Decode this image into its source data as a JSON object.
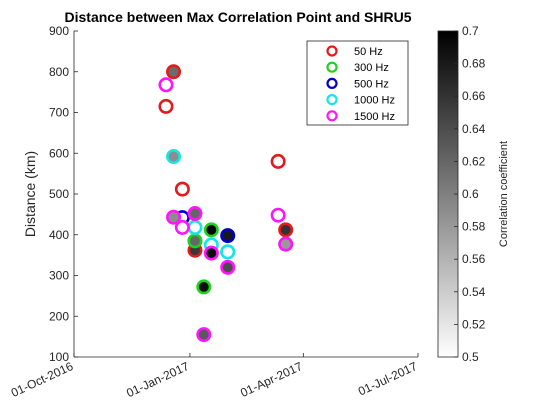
{
  "chart_data": {
    "type": "scatter",
    "title": "Distance between Max Correlation Point and SHRU5",
    "xlabel": "",
    "ylabel": "Distance (km)",
    "ylim": [
      100,
      900
    ],
    "yticks": [
      100,
      200,
      300,
      400,
      500,
      600,
      700,
      800,
      900
    ],
    "xlim": [
      "2016-10-01",
      "2017-07-01"
    ],
    "xticks": [
      "2016-10-01",
      "2017-01-01",
      "2017-04-01",
      "2017-07-01"
    ],
    "xtick_labels": [
      "01-Oct-2016",
      "01-Jan-2017",
      "01-Apr-2017",
      "01-Jul-2017"
    ],
    "legend_position": "top-right",
    "series": [
      {
        "name": "50 Hz",
        "color": "#e41a1c",
        "points": [
          {
            "x": "2016-12-13",
            "y": 715,
            "c": 0.5
          },
          {
            "x": "2016-12-19",
            "y": 800,
            "c": 0.615
          },
          {
            "x": "2016-12-26",
            "y": 512,
            "c": 0.5
          },
          {
            "x": "2017-01-05",
            "y": 362,
            "c": 0.655
          },
          {
            "x": "2017-03-12",
            "y": 580,
            "c": 0.5
          },
          {
            "x": "2017-03-18",
            "y": 412,
            "c": 0.66
          }
        ]
      },
      {
        "name": "300 Hz",
        "color": "#1fd11f",
        "points": [
          {
            "x": "2017-01-05",
            "y": 385,
            "c": 0.62
          },
          {
            "x": "2017-01-12",
            "y": 272,
            "c": 0.69
          },
          {
            "x": "2017-01-18",
            "y": 412,
            "c": 0.7
          },
          {
            "x": "2017-01-31",
            "y": 358,
            "c": 0.69
          },
          {
            "x": "2017-03-18",
            "y": 377,
            "c": 0.64
          }
        ]
      },
      {
        "name": "500 Hz",
        "color": "#0000c8",
        "points": [
          {
            "x": "2016-12-26",
            "y": 442,
            "c": 0.5
          },
          {
            "x": "2017-01-31",
            "y": 398,
            "c": 0.68
          }
        ]
      },
      {
        "name": "1000 Hz",
        "color": "#14e6e6",
        "points": [
          {
            "x": "2016-12-19",
            "y": 592,
            "c": 0.59
          },
          {
            "x": "2017-01-05",
            "y": 418,
            "c": 0.5
          },
          {
            "x": "2017-01-18",
            "y": 375,
            "c": 0.5
          },
          {
            "x": "2017-01-31",
            "y": 358,
            "c": 0.5
          }
        ]
      },
      {
        "name": "1500 Hz",
        "color": "#ff14ff",
        "points": [
          {
            "x": "2016-12-13",
            "y": 768,
            "c": 0.5
          },
          {
            "x": "2016-12-19",
            "y": 443,
            "c": 0.59
          },
          {
            "x": "2016-12-26",
            "y": 418,
            "c": 0.5
          },
          {
            "x": "2017-01-05",
            "y": 452,
            "c": 0.62
          },
          {
            "x": "2017-01-12",
            "y": 155,
            "c": 0.63
          },
          {
            "x": "2017-01-18",
            "y": 355,
            "c": 0.69
          },
          {
            "x": "2017-01-31",
            "y": 320,
            "c": 0.64
          },
          {
            "x": "2017-03-12",
            "y": 448,
            "c": 0.5
          },
          {
            "x": "2017-03-18",
            "y": 377,
            "c": 0.58
          }
        ]
      }
    ],
    "colorbar": {
      "label": "Correlation coefficient",
      "range": [
        0.5,
        0.7
      ],
      "ticks": [
        0.5,
        0.52,
        0.54,
        0.56,
        0.58,
        0.6,
        0.62,
        0.64,
        0.66,
        0.68,
        0.7
      ],
      "tick_labels": [
        "0.5",
        "0.52",
        "0.54",
        "0.56",
        "0.58",
        "0.6",
        "0.62",
        "0.64",
        "0.66",
        "0.68",
        "0.7"
      ],
      "colormap": "gray-reversed"
    }
  }
}
